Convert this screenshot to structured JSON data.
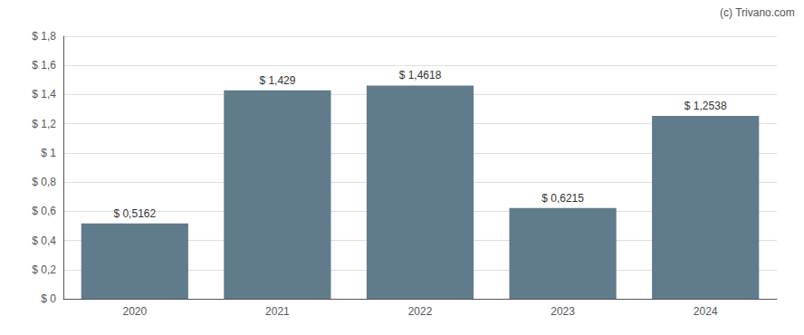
{
  "chart_data": {
    "type": "bar",
    "categories": [
      "2020",
      "2021",
      "2022",
      "2023",
      "2024"
    ],
    "values": [
      0.5162,
      1.429,
      1.4618,
      0.6215,
      1.2538
    ],
    "value_labels": [
      "$ 0,5162",
      "$ 1,429",
      "$ 1,4618",
      "$ 0,6215",
      "$ 1,2538"
    ],
    "data_labels": true,
    "color": "#607b8b",
    "ylim": [
      0,
      1.8
    ],
    "yticks": [
      {
        "value": 0,
        "label": "$ 0"
      },
      {
        "value": 0.2,
        "label": "$ 0,2"
      },
      {
        "value": 0.4,
        "label": "$ 0,4"
      },
      {
        "value": 0.6,
        "label": "$ 0,6"
      },
      {
        "value": 0.8,
        "label": "$ 0,8"
      },
      {
        "value": 1.0,
        "label": "$ 1"
      },
      {
        "value": 1.2,
        "label": "$ 1,2"
      },
      {
        "value": 1.4,
        "label": "$ 1,4"
      },
      {
        "value": 1.6,
        "label": "$ 1,6"
      },
      {
        "value": 1.8,
        "label": "$ 1,8"
      }
    ],
    "grid": true,
    "annotation": "(c) Trivano.com"
  }
}
